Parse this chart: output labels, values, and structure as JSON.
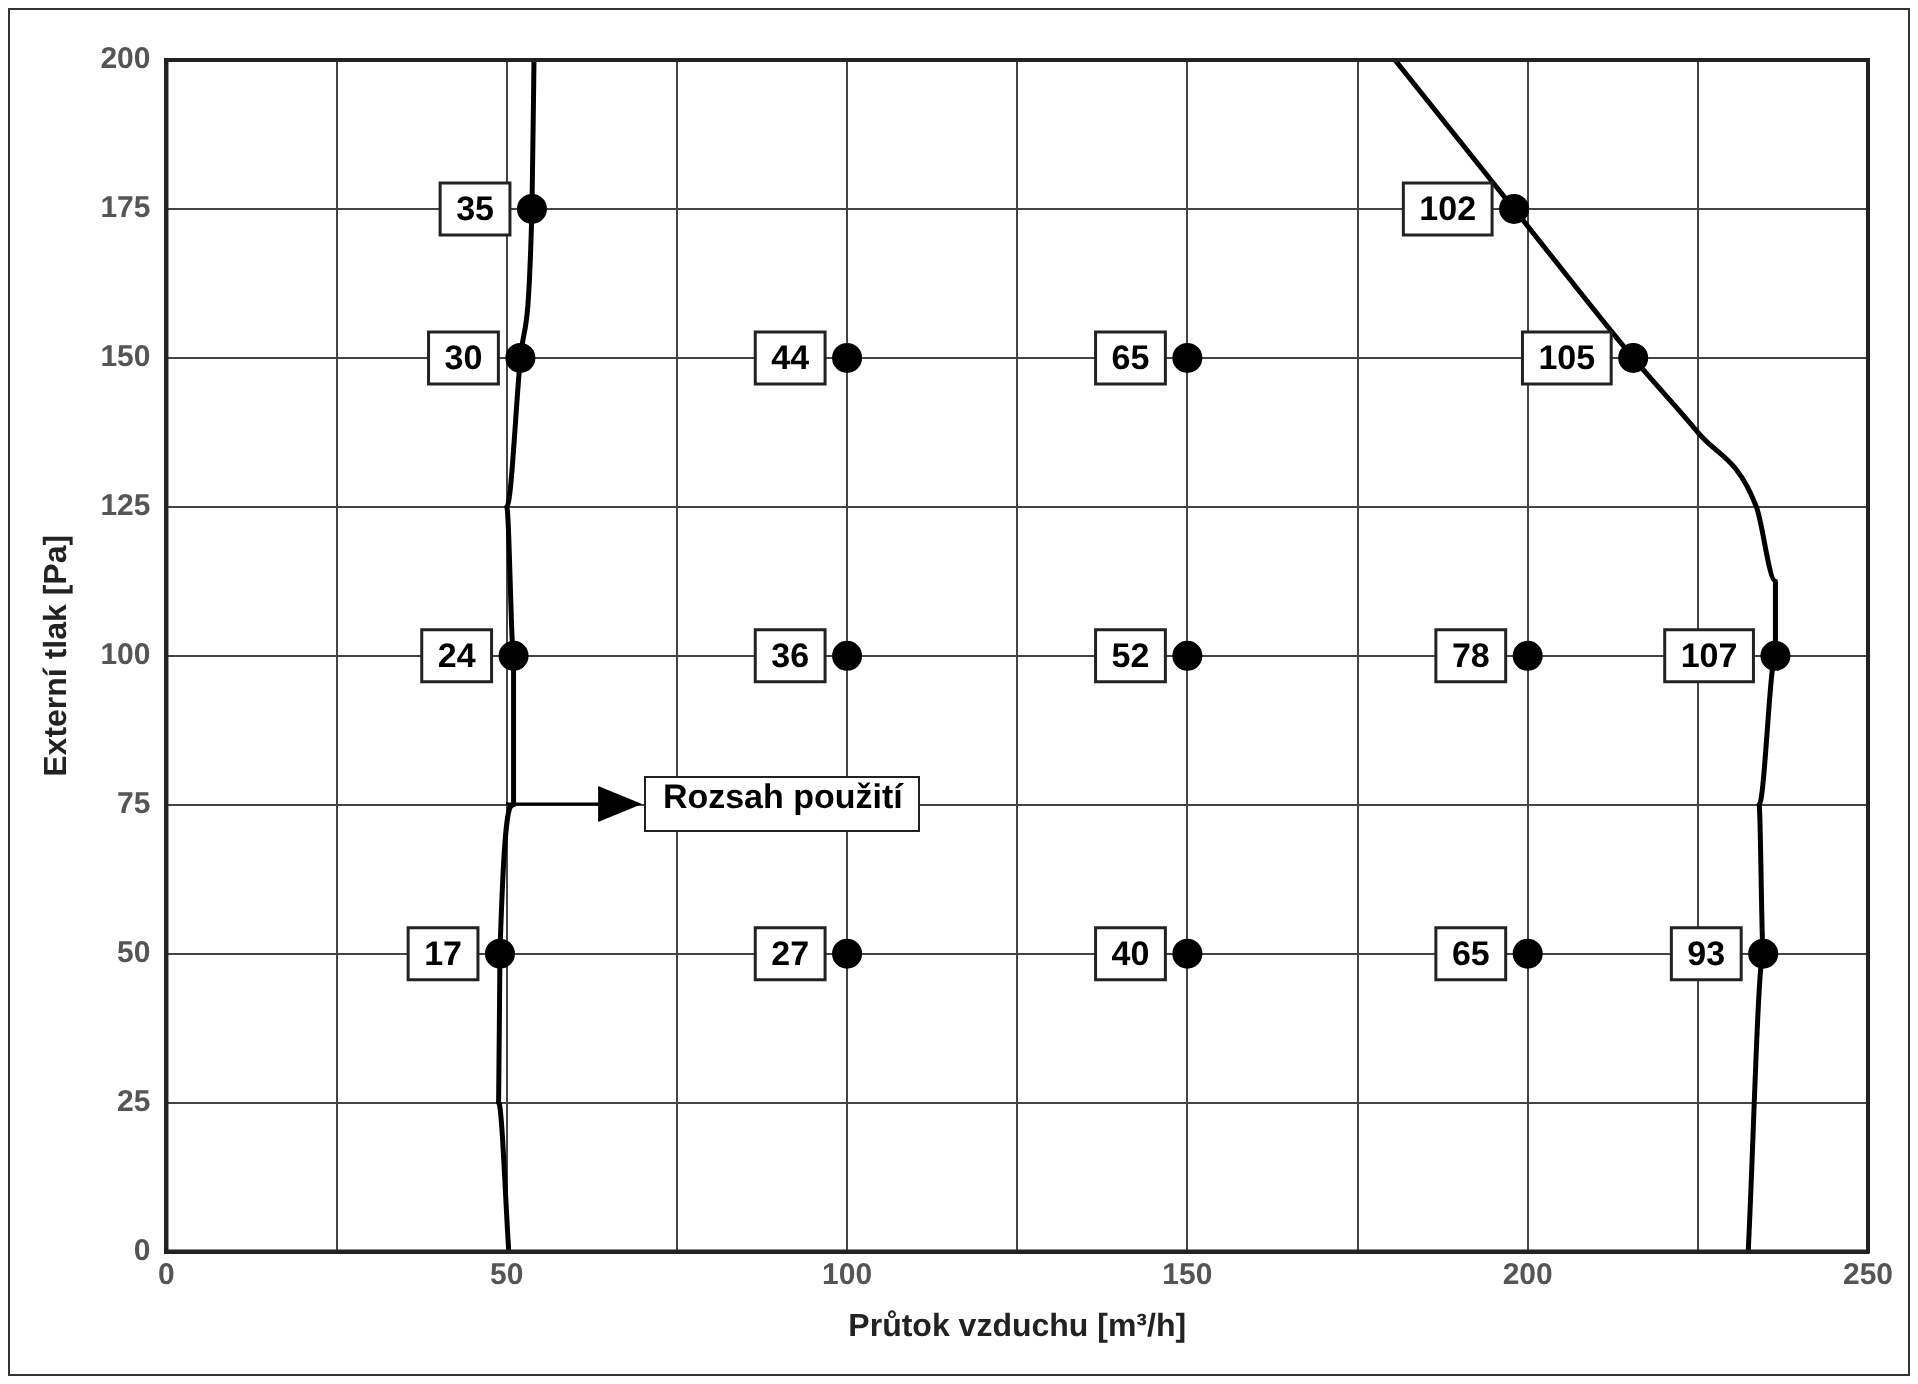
{
  "chart_data": {
    "type": "scatter",
    "xlabel": "Průtok vzduchu [m³/h]",
    "ylabel": "Externí tlak [Pa]",
    "xlim": [
      0,
      250
    ],
    "xticks": [
      0,
      {
        "value": 25,
        "label": null
      },
      50,
      {
        "value": 75,
        "label": null
      },
      100,
      {
        "value": 125,
        "label": null
      },
      150,
      {
        "value": 175,
        "label": null
      },
      200,
      {
        "value": 225,
        "label": null
      },
      250
    ],
    "ylim": [
      0,
      200
    ],
    "yticks": [
      0,
      25,
      50,
      75,
      100,
      125,
      150,
      175,
      200
    ],
    "grid": true,
    "legend": false,
    "marker": "circle",
    "series": [
      {
        "type": "line",
        "color": "#000000",
        "marker": "none",
        "x": [
          50.3,
          48.8,
          49,
          51,
          51,
          50,
          52,
          53.7,
          54
        ],
        "values": [
          0,
          25,
          50,
          75,
          100,
          125,
          150,
          175,
          200
        ]
      },
      {
        "type": "line",
        "color": "#000000",
        "marker": "none",
        "x": [
          232.4,
          234.6,
          234,
          236.4,
          236.4,
          233.6,
          225,
          215.5,
          198,
          180.5
        ],
        "values": [
          0,
          50,
          75,
          100,
          112.5,
          125,
          137.5,
          150,
          175,
          200
        ]
      },
      {
        "color": "#000000",
        "x": [
          53.7,
          52,
          51,
          49,
          100,
          100,
          100,
          150,
          150,
          150,
          198,
          215.5,
          200,
          200,
          236.4,
          234.6
        ],
        "values": [
          175,
          150,
          100,
          50,
          150,
          100,
          50,
          150,
          100,
          50,
          175,
          150,
          100,
          50,
          100,
          50
        ]
      }
    ],
    "annotations": [
      {
        "text": "35",
        "x": 53.7,
        "y": 175
      },
      {
        "text": "30",
        "x": 52,
        "y": 150
      },
      {
        "text": "24",
        "x": 51,
        "y": 100
      },
      {
        "text": "17",
        "x": 49,
        "y": 50
      },
      {
        "text": "44",
        "x": 100,
        "y": 150
      },
      {
        "text": "36",
        "x": 100,
        "y": 100
      },
      {
        "text": "27",
        "x": 100,
        "y": 50
      },
      {
        "text": "65",
        "x": 150,
        "y": 150
      },
      {
        "text": "52",
        "x": 150,
        "y": 100
      },
      {
        "text": "40",
        "x": 150,
        "y": 50
      },
      {
        "text": "102",
        "x": 198,
        "y": 175
      },
      {
        "text": "105",
        "x": 215.5,
        "y": 150
      },
      {
        "text": "78",
        "x": 200,
        "y": 100
      },
      {
        "text": "65",
        "x": 200,
        "y": 50
      },
      {
        "text": "107",
        "x": 236.4,
        "y": 100
      },
      {
        "text": "93",
        "x": 234.6,
        "y": 50
      },
      "Rozsah použití"
    ]
  }
}
